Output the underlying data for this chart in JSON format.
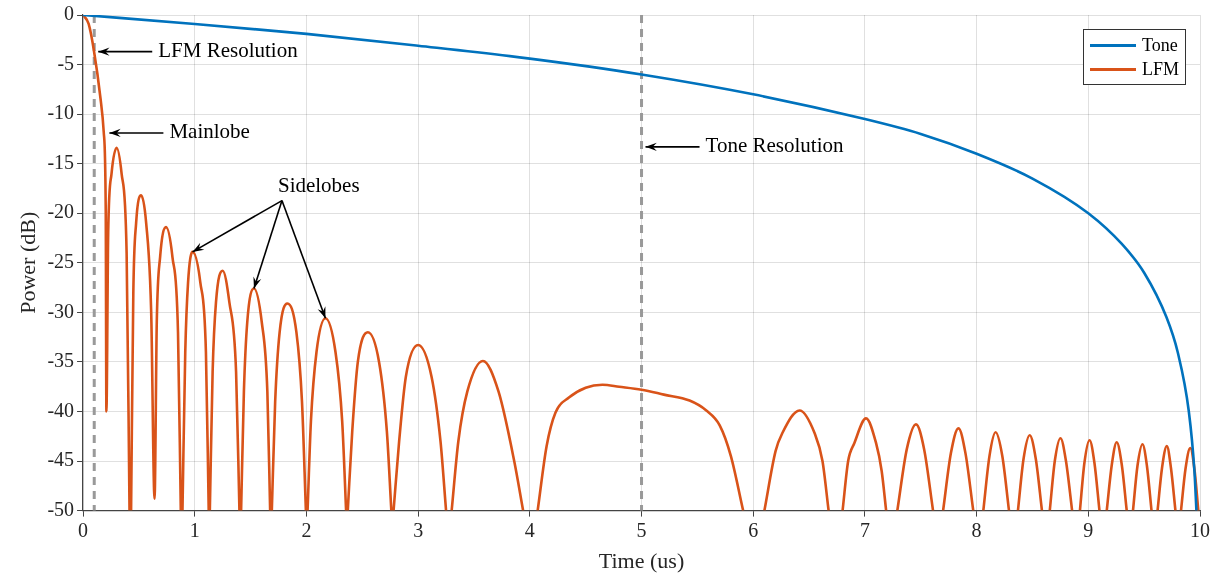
{
  "chart_data": {
    "type": "line",
    "xlabel": "Time (us)",
    "ylabel": "Power (dB)",
    "xlim": [
      0,
      10
    ],
    "xticks": [
      0,
      1,
      2,
      3,
      4,
      5,
      6,
      7,
      8,
      9,
      10
    ],
    "ylim": [
      -50,
      0
    ],
    "yticks": [
      -50,
      -45,
      -40,
      -35,
      -30,
      -25,
      -20,
      -15,
      -10,
      -5,
      0
    ],
    "grid": true,
    "legend": "top right",
    "line_style": "solid",
    "marker": "none",
    "series": [
      {
        "name": "Tone",
        "color": "#0072bd",
        "x": [
          0,
          1,
          2,
          3,
          4,
          5,
          6,
          7,
          7.5,
          8,
          8.5,
          9,
          9.3,
          9.5,
          9.7,
          9.8,
          9.9,
          9.95,
          9.968
        ],
        "values": [
          0,
          -0.9,
          -1.9,
          -3.1,
          -4.4,
          -6,
          -8,
          -10.5,
          -12,
          -14,
          -16.5,
          -20,
          -23.1,
          -26,
          -30.5,
          -34,
          -40,
          -46,
          -50
        ]
      },
      {
        "name": "LFM",
        "color": "#d95319",
        "x": [
          0,
          0.05,
          0.096,
          0.156,
          0.185,
          0.203,
          0.209,
          0.225,
          0.255,
          0.3,
          0.345,
          0.39,
          0.416,
          0.42,
          0.43,
          0.45,
          0.475,
          0.52,
          0.565,
          0.61,
          0.64,
          0.66,
          0.69,
          0.743,
          0.8,
          0.85,
          0.875,
          0.88,
          0.89,
          0.915,
          0.94,
          0.98,
          1.05,
          1.1,
          1.125,
          1.13,
          1.135,
          1.16,
          1.19,
          1.25,
          1.31,
          1.37,
          1.4,
          1.405,
          1.415,
          1.44,
          1.47,
          1.53,
          1.6,
          1.65,
          1.675,
          1.68,
          1.69,
          1.72,
          1.76,
          1.83,
          1.91,
          1.96,
          1.995,
          2,
          2.01,
          2.04,
          2.09,
          2.17,
          2.26,
          2.32,
          2.355,
          2.36,
          2.37,
          2.41,
          2.46,
          2.55,
          2.65,
          2.72,
          2.76,
          2.77,
          2.78,
          2.83,
          2.89,
          3,
          3.12,
          3.2,
          3.25,
          3.27,
          3.3,
          3.36,
          3.44,
          3.58,
          3.72,
          3.86,
          3.94,
          4,
          4.07,
          4.15,
          4.23,
          4.35,
          4.5,
          4.65,
          4.8,
          5,
          5.2,
          5.43,
          5.58,
          5.7,
          5.8,
          5.91,
          6,
          6.1,
          6.2,
          6.26,
          6.415,
          6.55,
          6.62,
          6.675,
          6.74,
          6.8,
          6.85,
          6.905,
          7.01,
          7.1,
          7.15,
          7.19,
          7.24,
          7.29,
          7.375,
          7.457,
          7.53,
          7.61,
          7.655,
          7.7,
          7.77,
          7.838,
          7.9,
          7.97,
          8.015,
          8.06,
          8.115,
          8.17,
          8.23,
          8.29,
          8.33,
          8.37,
          8.42,
          8.475,
          8.53,
          8.585,
          8.62,
          8.655,
          8.7,
          8.751,
          8.8,
          8.855,
          8.89,
          8.925,
          8.965,
          9.011,
          9.055,
          9.1,
          9.13,
          9.165,
          9.21,
          9.254,
          9.3,
          9.344,
          9.37,
          9.4,
          9.44,
          9.485,
          9.525,
          9.566,
          9.59,
          9.62,
          9.66,
          9.703,
          9.74,
          9.78,
          9.805,
          9.83,
          9.87,
          9.913,
          9.95,
          9.985
        ],
        "values": [
          0,
          -0.9,
          -3.5,
          -8.4,
          -11.8,
          -19.7,
          -40,
          -22,
          -16,
          -13.4,
          -16,
          -24,
          -50,
          null,
          -50,
          -28,
          -21,
          -18.2,
          -21,
          -30,
          -48.8,
          -31,
          -24.4,
          -21.4,
          -24.4,
          -32,
          -50,
          null,
          -50,
          -34,
          -27,
          -23.9,
          -27,
          -34,
          -50,
          null,
          -50,
          -36,
          -29,
          -25.8,
          -29,
          -36,
          -50,
          null,
          -50,
          -38,
          -31,
          -27.6,
          -31,
          -38,
          -50,
          null,
          -50,
          -39,
          -32,
          -29.1,
          -32,
          -39,
          -50,
          null,
          -50,
          -41,
          -34,
          -30.6,
          -34,
          -41,
          -50,
          null,
          -50,
          -42,
          -35,
          -32,
          -35,
          -42,
          -50,
          null,
          -50,
          -43,
          -36.5,
          -33.3,
          -36.5,
          -43,
          -50,
          null,
          -50,
          -43,
          -38,
          -34.9,
          -38,
          -45,
          -50,
          null,
          -50,
          -43.5,
          -40.1,
          -38.6,
          -37.6,
          -37.3,
          -37.5,
          -37.8,
          -38.3,
          -38.9,
          -39.9,
          -41.4,
          -44.5,
          -50,
          null,
          -50,
          -44,
          -42.2,
          -39.9,
          -42.2,
          -45,
          -50,
          null,
          -50,
          -45,
          -43.2,
          -40.7,
          -43.2,
          -46,
          -50,
          null,
          -50,
          -43.8,
          -41.3,
          -43.8,
          -50,
          null,
          -50,
          -44.2,
          -41.7,
          -44.2,
          -50,
          null,
          -50,
          -44.5,
          -42.1,
          -44.5,
          -50,
          null,
          -50,
          -44.8,
          -42.4,
          -44.8,
          -50,
          null,
          -50,
          -45,
          -42.7,
          -45,
          -50,
          null,
          -50,
          -45.2,
          -42.9,
          -45.2,
          -50,
          null,
          -50,
          -45.4,
          -43.1,
          -45.4,
          -50,
          null,
          -50,
          -45.5,
          -43.3,
          -45.5,
          -50,
          null,
          -50,
          -45.7,
          -43.5,
          -45.7,
          -50,
          null,
          -50,
          -45.8,
          -43.7,
          -45.8,
          -50
        ]
      }
    ],
    "ref_lines": [
      {
        "axis": "x",
        "value": 0.1,
        "color": "#999999",
        "line_style": "dashed"
      },
      {
        "axis": "x",
        "value": 5,
        "color": "#999999",
        "line_style": "dashed"
      }
    ],
    "annotations": [
      {
        "text": "LFM Resolution",
        "x": 0.1,
        "y": -3.7
      },
      {
        "text": "Mainlobe",
        "x": 0.2,
        "y": -11.9
      },
      {
        "text": "Sidelobes",
        "x": 1.53,
        "y": -27.6
      },
      {
        "text": "Tone Resolution",
        "x": 5,
        "y": -13.3
      }
    ]
  }
}
